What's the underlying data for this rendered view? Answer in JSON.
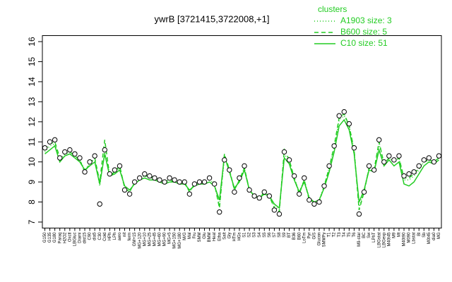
{
  "chart_data": {
    "type": "line",
    "title": "ywrB [3721415,3722008,+1]",
    "legend_title": "clusters",
    "legend_position": "top-right",
    "categories": [
      "G150",
      "G135",
      "G180",
      "Paraq",
      "H2O2",
      "Oxctl",
      "LBGluc",
      "Diami",
      "dist15",
      "C90",
      "dia5",
      "C30",
      "Cold",
      "HPh",
      "LPh",
      "aero",
      "nit",
      "ferm",
      "GM+15",
      "MG+120",
      "MG+10",
      "MG+25",
      "MG+45",
      "MG+60",
      "MG+90",
      "MG+5",
      "MG+150",
      "MG+180",
      "M/G",
      "Mal",
      "Fru",
      "SMM",
      "Glu",
      "BMM",
      "Heat",
      "Etha",
      "Salt",
      "Gly",
      "HTm",
      "HGs",
      "S1",
      "S2",
      "S3",
      "S4",
      "S5",
      "S6",
      "S7",
      "S8",
      "S9",
      "BT",
      "B36",
      "B60",
      "LoTm",
      "Pyr",
      "GlS",
      "Glucon",
      "SMMPy",
      "T1",
      "T2",
      "T3",
      "T4",
      "T5",
      "T6",
      "M9-star",
      "BC",
      "Sw",
      "LPhT",
      "LBGstat",
      "LBGexp",
      "M40t45",
      "M9",
      "Mt",
      "M40t90",
      "M090",
      "Lbstat",
      "Bl",
      "Sb",
      "M0t45",
      "dia0",
      "MG"
    ],
    "values": [
      10.7,
      11.0,
      11.1,
      10.2,
      10.5,
      10.6,
      10.4,
      10.2,
      9.5,
      10.0,
      10.3,
      7.9,
      10.6,
      9.4,
      9.6,
      9.8,
      8.6,
      8.4,
      9.0,
      9.2,
      9.4,
      9.3,
      9.2,
      9.1,
      9.0,
      9.2,
      9.1,
      9.0,
      9.0,
      8.4,
      8.9,
      9.0,
      9.0,
      9.2,
      8.9,
      7.5,
      10.1,
      9.6,
      8.5,
      9.2,
      9.8,
      8.6,
      8.3,
      8.2,
      8.5,
      8.3,
      7.6,
      7.4,
      10.5,
      10.1,
      9.3,
      8.4,
      9.2,
      8.1,
      7.9,
      8.0,
      8.8,
      9.8,
      10.8,
      12.3,
      12.5,
      11.9,
      10.7,
      7.4,
      8.5,
      9.8,
      9.6,
      11.1,
      10.0,
      10.3,
      10.1,
      10.3,
      9.3,
      9.4,
      9.5,
      9.8,
      10.1,
      10.2,
      10.0,
      10.3
    ],
    "point_color": "#000000",
    "series": [
      {
        "name": "A1903 size: 3",
        "color": "#22cc22",
        "dash": "dotted",
        "values": [
          10.5,
          10.8,
          10.9,
          10.1,
          10.4,
          10.5,
          10.3,
          10.1,
          9.6,
          9.9,
          10.2,
          8.8,
          10.5,
          9.4,
          9.5,
          9.7,
          8.7,
          8.5,
          9.0,
          9.2,
          9.3,
          9.2,
          9.2,
          9.1,
          9.0,
          9.1,
          9.1,
          9.0,
          9.0,
          8.5,
          8.9,
          9.0,
          9.0,
          9.1,
          8.9,
          7.8,
          10.2,
          9.6,
          8.6,
          9.1,
          9.7,
          8.6,
          8.3,
          8.2,
          8.5,
          8.3,
          7.8,
          7.6,
          10.4,
          10.0,
          9.2,
          8.5,
          9.1,
          8.2,
          8.0,
          8.1,
          8.8,
          9.7,
          10.7,
          12.1,
          12.3,
          11.8,
          10.6,
          7.7,
          8.6,
          9.7,
          9.6,
          10.9,
          9.9,
          10.2,
          10.0,
          10.2,
          9.1,
          9.1,
          9.3,
          9.6,
          10.0,
          10.1,
          10.0,
          10.2
        ]
      },
      {
        "name": "B600 size: 5",
        "color": "#22cc22",
        "dash": "dashed",
        "values": [
          10.6,
          10.9,
          11.0,
          10.2,
          10.4,
          10.5,
          10.3,
          10.1,
          9.5,
          9.9,
          10.2,
          9.0,
          11.1,
          9.3,
          9.5,
          9.8,
          8.7,
          8.5,
          9.0,
          9.2,
          9.3,
          9.3,
          9.2,
          9.1,
          9.0,
          9.1,
          9.0,
          9.0,
          9.0,
          8.5,
          8.9,
          9.0,
          9.0,
          9.2,
          8.9,
          7.7,
          10.4,
          9.6,
          8.6,
          9.1,
          9.7,
          8.6,
          8.3,
          8.2,
          8.5,
          8.3,
          7.7,
          7.5,
          10.6,
          10.1,
          9.2,
          8.4,
          9.1,
          8.1,
          8.0,
          8.0,
          8.8,
          9.7,
          10.8,
          12.2,
          12.4,
          11.8,
          10.6,
          7.6,
          8.5,
          9.7,
          9.6,
          11.0,
          9.9,
          10.2,
          10.0,
          10.2,
          9.2,
          9.2,
          9.4,
          9.7,
          10.0,
          10.1,
          10.0,
          10.2
        ]
      },
      {
        "name": "C10 size: 51",
        "color": "#22cc22",
        "dash": "solid",
        "values": [
          10.4,
          10.6,
          10.8,
          10.0,
          10.3,
          10.4,
          10.2,
          10.0,
          9.6,
          9.8,
          10.0,
          8.9,
          10.4,
          9.3,
          9.4,
          9.6,
          8.8,
          8.6,
          8.9,
          9.1,
          9.2,
          9.1,
          9.1,
          9.0,
          8.9,
          9.0,
          9.0,
          8.9,
          8.9,
          8.6,
          8.8,
          8.9,
          8.9,
          9.0,
          8.8,
          8.1,
          10.3,
          9.5,
          8.7,
          9.0,
          9.6,
          8.6,
          8.3,
          8.2,
          8.4,
          8.3,
          7.9,
          7.7,
          10.2,
          9.9,
          9.1,
          8.5,
          9.0,
          8.2,
          8.0,
          8.1,
          8.7,
          9.5,
          10.5,
          11.8,
          12.1,
          11.6,
          10.4,
          8.0,
          8.6,
          9.6,
          9.5,
          10.6,
          9.8,
          10.1,
          9.8,
          10.0,
          8.9,
          8.8,
          9.0,
          9.4,
          9.8,
          10.0,
          9.9,
          10.1
        ]
      }
    ],
    "ylim": [
      6.7,
      16.3
    ],
    "yticks": [
      7,
      8,
      9,
      10,
      11,
      12,
      13,
      14,
      15,
      16
    ]
  }
}
